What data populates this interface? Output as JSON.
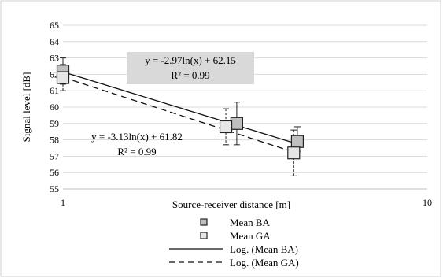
{
  "chart_data": {
    "type": "scatter",
    "xscale": "log",
    "xlim": [
      1,
      10
    ],
    "ylim": [
      55,
      65
    ],
    "xticks": [
      "1",
      "10"
    ],
    "yticks": [
      "55",
      "56",
      "57",
      "58",
      "59",
      "60",
      "61",
      "62",
      "63",
      "64",
      "65"
    ],
    "xlabel": "Source-receiver distance [m]",
    "ylabel": "Signal level [dB]",
    "grid": "horizontal",
    "legend_position": "bottom",
    "series": [
      {
        "name": "Mean BA",
        "marker_color": "#bfbfbf",
        "x": [
          1,
          3,
          4.4
        ],
        "y": [
          62.2,
          59.0,
          57.9
        ],
        "err_low": [
          0.8,
          1.3,
          0.6
        ],
        "err_high": [
          0.8,
          1.3,
          0.9
        ],
        "trendline": {
          "name": "Log. (Mean BA)",
          "style": "solid",
          "a": -2.97,
          "b": 62.15,
          "equation": "y = -2.97ln(x) + 62.15",
          "r2": "R² = 0.99"
        }
      },
      {
        "name": "Mean GA",
        "marker_color": "#e6e6e6",
        "x": [
          1,
          2.8,
          4.3
        ],
        "y": [
          61.8,
          58.8,
          57.2
        ],
        "err_low": [
          0.8,
          1.1,
          1.4
        ],
        "err_high": [
          0.8,
          1.1,
          1.4
        ],
        "trendline": {
          "name": "Log. (Mean GA)",
          "style": "dashed",
          "a": -3.13,
          "b": 61.82,
          "equation": "y = -3.13ln(x) + 61.82",
          "r2": "R² = 0.99"
        }
      }
    ]
  }
}
